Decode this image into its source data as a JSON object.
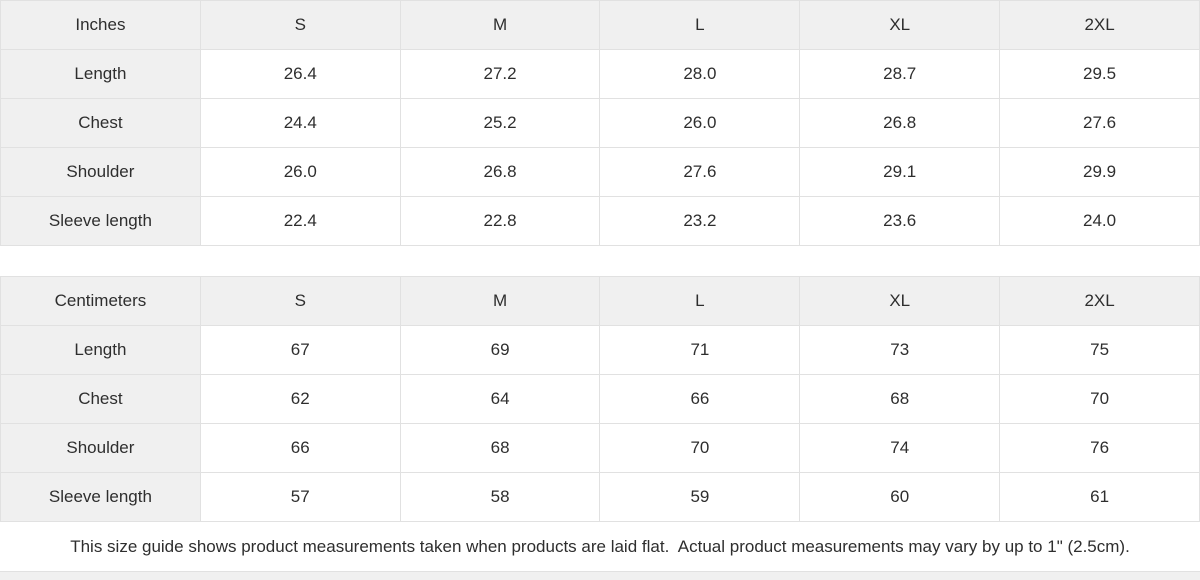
{
  "tables": [
    {
      "unit_label": "Inches",
      "columns": [
        "S",
        "M",
        "L",
        "XL",
        "2XL"
      ],
      "rows": [
        {
          "label": "Length",
          "values": [
            "26.4",
            "27.2",
            "28.0",
            "28.7",
            "29.5"
          ]
        },
        {
          "label": "Chest",
          "values": [
            "24.4",
            "25.2",
            "26.0",
            "26.8",
            "27.6"
          ]
        },
        {
          "label": "Shoulder",
          "values": [
            "26.0",
            "26.8",
            "27.6",
            "29.1",
            "29.9"
          ]
        },
        {
          "label": "Sleeve length",
          "values": [
            "22.4",
            "22.8",
            "23.2",
            "23.6",
            "24.0"
          ]
        }
      ]
    },
    {
      "unit_label": "Centimeters",
      "columns": [
        "S",
        "M",
        "L",
        "XL",
        "2XL"
      ],
      "rows": [
        {
          "label": "Length",
          "values": [
            "67",
            "69",
            "71",
            "73",
            "75"
          ]
        },
        {
          "label": "Chest",
          "values": [
            "62",
            "64",
            "66",
            "68",
            "70"
          ]
        },
        {
          "label": "Shoulder",
          "values": [
            "66",
            "68",
            "70",
            "74",
            "76"
          ]
        },
        {
          "label": "Sleeve length",
          "values": [
            "57",
            "58",
            "59",
            "60",
            "61"
          ]
        }
      ]
    }
  ],
  "footer": {
    "note": "This size guide shows product measurements taken when products are laid flat.  Actual product measurements may vary by up to 1\" (2.5cm)."
  },
  "colors": {
    "header_bg": "#f0f0f0",
    "cell_bg": "#ffffff",
    "border": "#e1e1e1",
    "text": "#2e2e2e"
  }
}
